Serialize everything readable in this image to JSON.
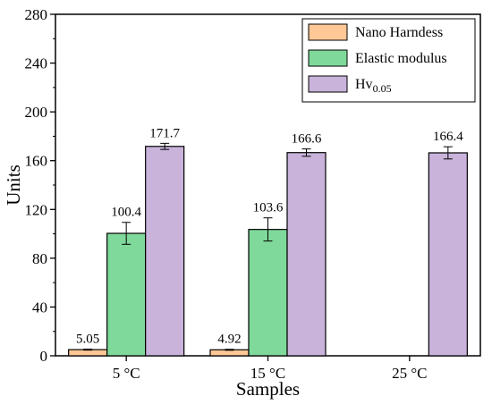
{
  "chart_data": {
    "type": "bar",
    "title": "",
    "xlabel": "Samples",
    "ylabel": "Units",
    "ylim": [
      0,
      280
    ],
    "yticks": [
      0,
      40,
      80,
      120,
      160,
      200,
      240,
      280
    ],
    "grid": false,
    "legend_position": "top-right",
    "categories": [
      "5 °C",
      "15 °C",
      "25 °C"
    ],
    "series": [
      {
        "name": "Nano Harndess",
        "color": "#FFC896",
        "values": [
          5.05,
          4.92,
          null
        ],
        "errors": [
          0.4,
          0.4,
          null
        ],
        "labels": [
          "5.05",
          "4.92",
          null
        ]
      },
      {
        "name": "Elastic modulus",
        "color": "#7FD99A",
        "values": [
          100.4,
          103.6,
          null
        ],
        "errors": [
          9,
          9.5,
          null
        ],
        "labels": [
          "100.4",
          "103.6",
          null
        ]
      },
      {
        "name": "Hv",
        "name_subscript": "0.05",
        "color": "#C9B3DB",
        "values": [
          171.7,
          166.6,
          166.4
        ],
        "errors": [
          2.5,
          3,
          5
        ],
        "labels": [
          "171.7",
          "166.6",
          "166.4"
        ]
      }
    ]
  }
}
